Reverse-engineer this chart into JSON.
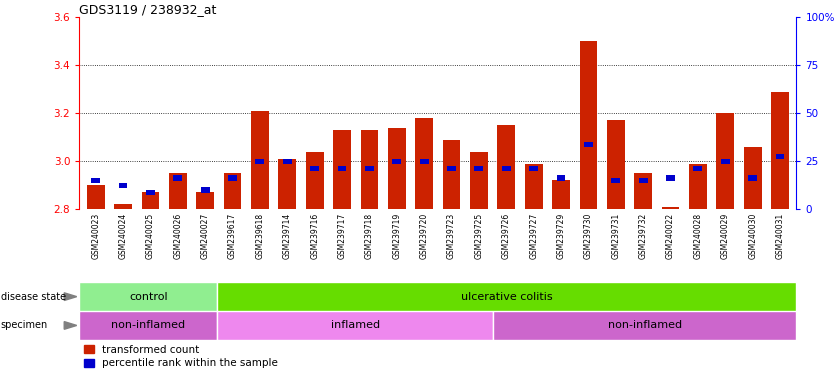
{
  "title": "GDS3119 / 238932_at",
  "samples": [
    "GSM240023",
    "GSM240024",
    "GSM240025",
    "GSM240026",
    "GSM240027",
    "GSM239617",
    "GSM239618",
    "GSM239714",
    "GSM239716",
    "GSM239717",
    "GSM239718",
    "GSM239719",
    "GSM239720",
    "GSM239723",
    "GSM239725",
    "GSM239726",
    "GSM239727",
    "GSM239729",
    "GSM239730",
    "GSM239731",
    "GSM239732",
    "GSM240022",
    "GSM240028",
    "GSM240029",
    "GSM240030",
    "GSM240031"
  ],
  "red_values": [
    2.9,
    2.82,
    2.87,
    2.95,
    2.87,
    2.95,
    3.21,
    3.01,
    3.04,
    3.13,
    3.13,
    3.14,
    3.18,
    3.09,
    3.04,
    3.15,
    2.99,
    2.92,
    3.5,
    3.17,
    2.95,
    2.81,
    2.99,
    3.2,
    3.06,
    3.29
  ],
  "blue_values": [
    2.92,
    2.9,
    2.87,
    2.93,
    2.88,
    2.93,
    3.0,
    3.0,
    2.97,
    2.97,
    2.97,
    3.0,
    3.0,
    2.97,
    2.97,
    2.97,
    2.97,
    2.93,
    3.07,
    2.92,
    2.92,
    2.93,
    2.97,
    3.0,
    2.93,
    3.02
  ],
  "ylim": [
    2.8,
    3.6
  ],
  "y_left_ticks": [
    2.8,
    3.0,
    3.2,
    3.4,
    3.6
  ],
  "y_right_ticks": [
    0,
    25,
    50,
    75,
    100
  ],
  "bar_color": "#cc2200",
  "blue_color": "#0000cc",
  "plot_bg": "#ffffff",
  "ticklabel_bg": "#d8d8d8",
  "control_color": "#90EE90",
  "uc_color": "#66DD00",
  "non_inflamed_color": "#CC66CC",
  "inflamed_color": "#EE88EE"
}
